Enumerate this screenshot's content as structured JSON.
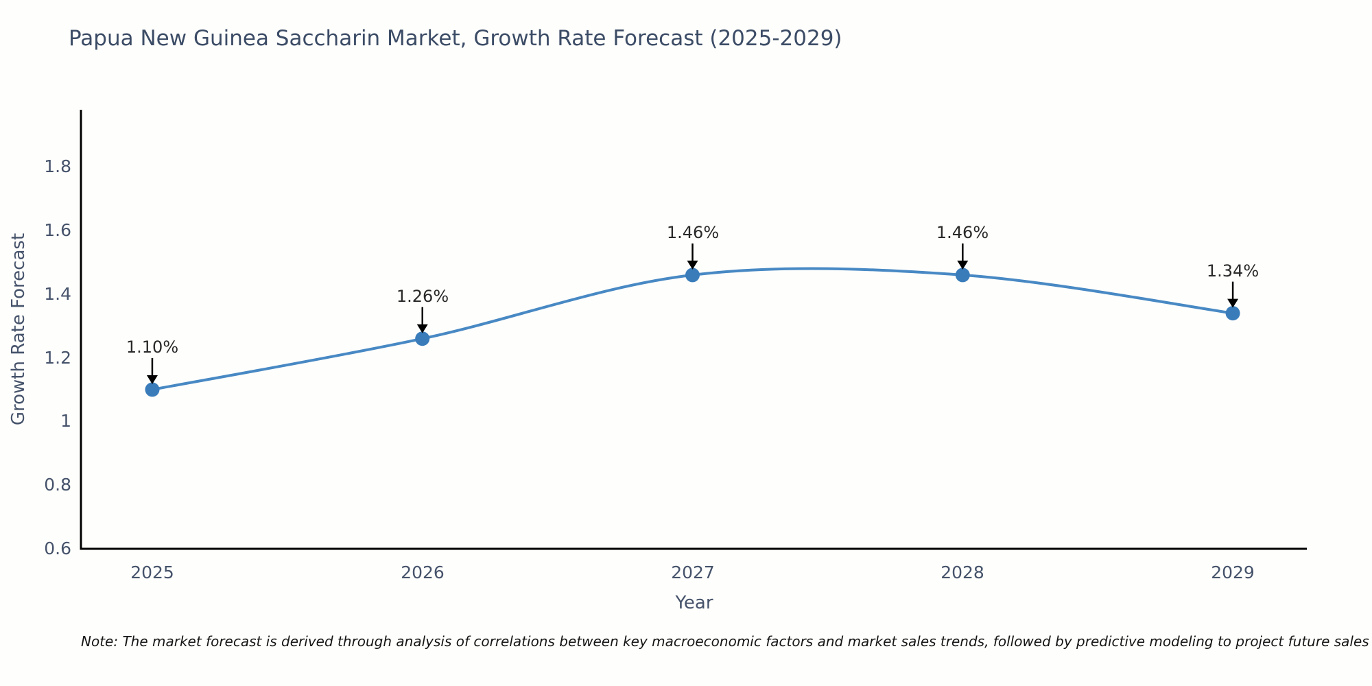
{
  "title": "Papua New Guinea Saccharin Market, Growth Rate Forecast (2025-2029)",
  "note": "Note: The market forecast is derived through analysis of correlations between key macroeconomic factors and market sales trends, followed by predictive modeling to project future sales",
  "chart_data": {
    "type": "line",
    "title": "Papua New Guinea Saccharin Market, Growth Rate Forecast (2025-2029)",
    "x": [
      2025,
      2026,
      2027,
      2028,
      2029
    ],
    "values": [
      1.1,
      1.26,
      1.46,
      1.46,
      1.34
    ],
    "labels": [
      "1.10%",
      "1.26%",
      "1.46%",
      "1.46%",
      "1.34%"
    ],
    "xticklabels": [
      "2025",
      "2026",
      "2027",
      "2028",
      "2029"
    ],
    "yticks": [
      0.6,
      0.8,
      1,
      1.2,
      1.4,
      1.6,
      1.8
    ],
    "yticklabels": [
      "0.6",
      "0.8",
      "1",
      "1.2",
      "1.4",
      "1.6",
      "1.8"
    ],
    "xlabel": "Year",
    "ylabel": "Growth Rate Forecast",
    "xlim": [
      2024.736,
      2029.274
    ],
    "ylim": [
      0.6,
      1.979
    ],
    "grid": false,
    "legend_position": "none",
    "line_color": "#4889c4",
    "marker_color": "#3a7cba",
    "axis_color": "#000000",
    "arrow_color": "#000000"
  },
  "colors": {
    "background": "#fefefc",
    "title_text": "#3c4c66",
    "tick_text": "#46536b",
    "annotation_text": "#2a2a2a",
    "note_text": "#161616"
  }
}
